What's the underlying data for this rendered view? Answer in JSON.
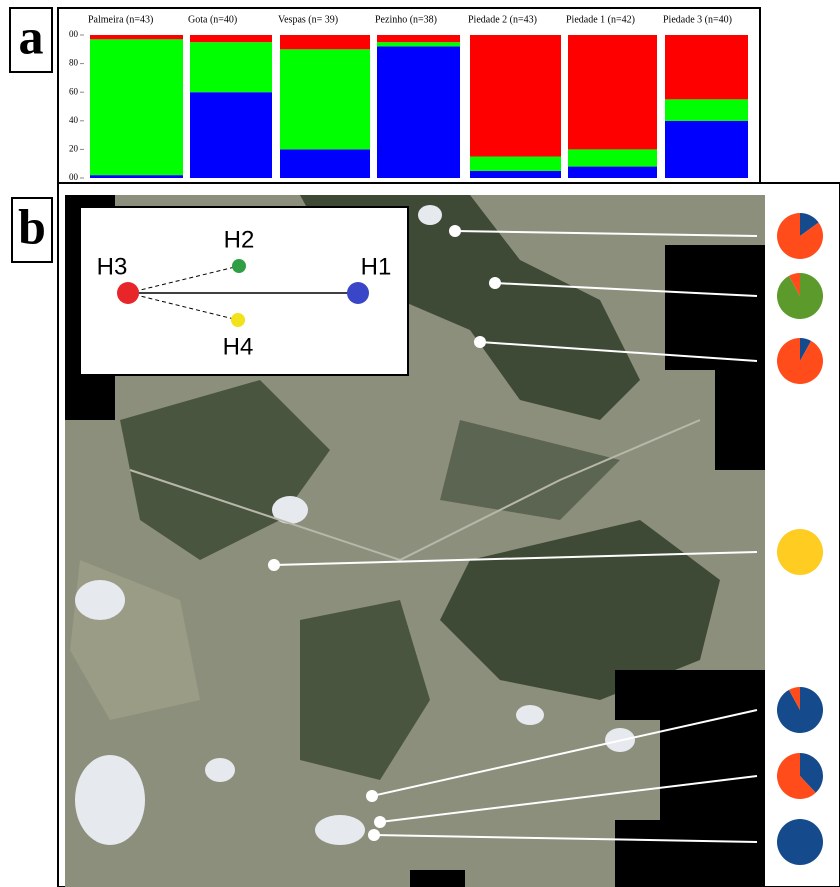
{
  "panel_labels": [
    "a",
    "b"
  ],
  "structure": {
    "ylim": [
      0,
      100
    ],
    "yticks": [
      {
        "value": 0,
        "label": "00"
      },
      20,
      40,
      60,
      80,
      {
        "value": 100,
        "label": "00"
      }
    ],
    "cluster_colors": [
      "#0000ff",
      "#00ff00",
      "#ff0000"
    ],
    "populations": [
      {
        "name": "Palmeira (n=43)",
        "values": [
          2,
          95,
          3
        ]
      },
      {
        "name": "Gota (n=40)",
        "values": [
          60,
          35,
          5
        ]
      },
      {
        "name": "Vespas (n= 39)",
        "values": [
          20,
          70,
          10
        ]
      },
      {
        "name": "Pezinho (n=38)",
        "values": [
          92,
          3,
          5
        ]
      },
      {
        "name": "Piedade 2 (n=43)",
        "values": [
          5,
          10,
          85
        ]
      },
      {
        "name": "Piedade 1 (n=42)",
        "values": [
          8,
          12,
          80
        ]
      },
      {
        "name": "Piedade 3 (n=40)",
        "values": [
          40,
          15,
          45
        ]
      }
    ]
  },
  "network": {
    "nodes": [
      {
        "label": "H3",
        "color": "#e8262a"
      },
      {
        "label": "H2",
        "color": "#2f9e44"
      },
      {
        "label": "H1",
        "color": "#3a46c8"
      },
      {
        "label": "H4",
        "color": "#f2e21a"
      }
    ]
  },
  "pies": [
    {
      "values": [
        15,
        85
      ],
      "colors": [
        "#154a8c",
        "#ff4c1a"
      ]
    },
    {
      "values": [
        92,
        8
      ],
      "colors": [
        "#5c9a2c",
        "#ff4c1a"
      ]
    },
    {
      "values": [
        8,
        92
      ],
      "colors": [
        "#154a8c",
        "#ff4c1a"
      ]
    },
    {
      "values": [
        100
      ],
      "colors": [
        "#ffcc22"
      ]
    },
    {
      "values": [
        92,
        8
      ],
      "colors": [
        "#154a8c",
        "#ff4c1a"
      ]
    },
    {
      "values": [
        38,
        62
      ],
      "colors": [
        "#154a8c",
        "#ff4c1a"
      ]
    },
    {
      "values": [
        100
      ],
      "colors": [
        "#154a8c"
      ]
    }
  ]
}
